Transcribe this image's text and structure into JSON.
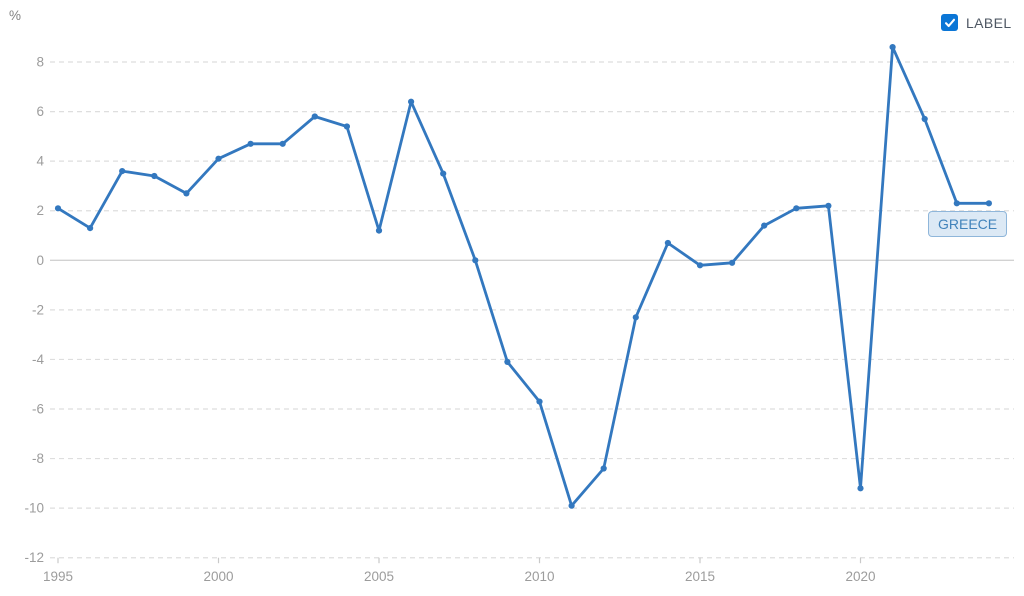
{
  "legend": {
    "label": "LABEL",
    "checked": true,
    "checkbox_color": "#0b76d6",
    "checkmark_color": "#ffffff"
  },
  "series_badge": {
    "label": "GREECE",
    "bg": "#dce9f5",
    "border": "#8fb6da",
    "text_color": "#4183bb"
  },
  "chart_data": {
    "type": "line",
    "title": "",
    "unit": "%",
    "xlabel": "",
    "ylabel": "%",
    "x": [
      1995,
      1996,
      1997,
      1998,
      1999,
      2000,
      2001,
      2002,
      2003,
      2004,
      2005,
      2006,
      2007,
      2008,
      2009,
      2010,
      2011,
      2012,
      2013,
      2014,
      2015,
      2016,
      2017,
      2018,
      2019,
      2020,
      2021,
      2022,
      2023,
      2024
    ],
    "series": [
      {
        "name": "GREECE",
        "color": "#3378bf",
        "values": [
          2.1,
          1.3,
          3.6,
          3.4,
          2.7,
          4.1,
          4.7,
          4.7,
          5.8,
          5.4,
          1.2,
          6.4,
          3.5,
          0.0,
          -4.1,
          -5.7,
          -9.9,
          -8.4,
          -2.3,
          0.7,
          -0.2,
          -0.1,
          1.4,
          2.1,
          2.2,
          -9.2,
          8.6,
          5.7,
          2.3,
          2.3
        ]
      }
    ],
    "xticks": [
      1995,
      2000,
      2005,
      2010,
      2015,
      2020
    ],
    "yticks": [
      8,
      6,
      4,
      2,
      0,
      -2,
      -4,
      -6,
      -8,
      -10,
      -12
    ],
    "ylim": [
      -12,
      8
    ],
    "xlim": [
      1995,
      2024
    ],
    "grid": "horizontal-dashed",
    "zero_line": true,
    "legend_position": "top-right",
    "colors": {
      "grid": "#dedede",
      "zero_line": "#d2d2d2",
      "tick_label": "#9c9c9c",
      "tick_mark": "#c9c9c9",
      "unit_label": "#828282"
    }
  }
}
